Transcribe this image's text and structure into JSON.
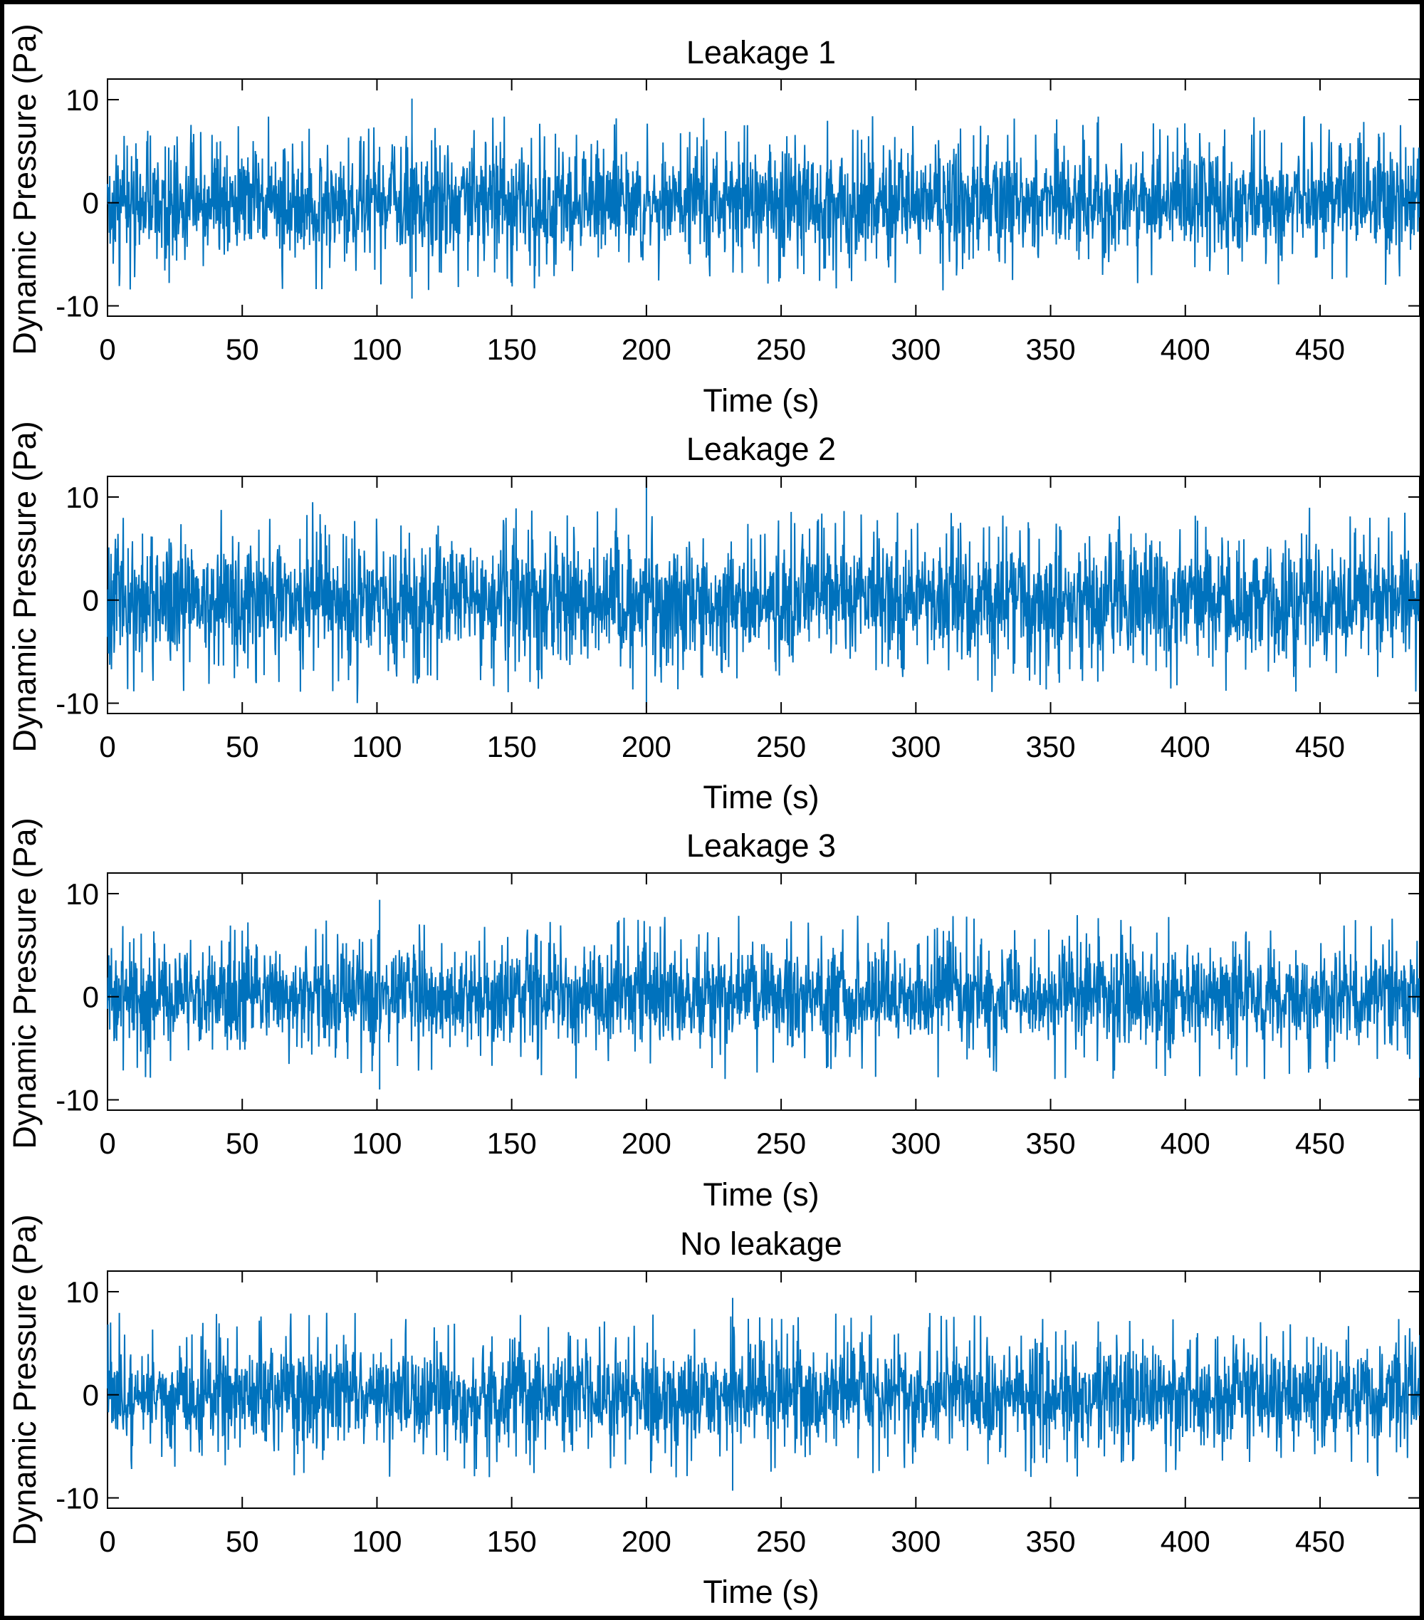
{
  "figure": {
    "series_color": "#0072BD",
    "frame_color": "#000000"
  },
  "chart_data": [
    {
      "type": "line",
      "title": "Leakage 1",
      "xlabel": "Time (s)",
      "ylabel": "Dynamic Pressure (Pa)",
      "xlim": [
        0,
        487
      ],
      "ylim": [
        -11,
        12
      ],
      "xticks": [
        0,
        50,
        100,
        150,
        200,
        250,
        300,
        350,
        400,
        450
      ],
      "yticks": [
        -10,
        0,
        10
      ],
      "xtick_labels": [
        "0",
        "50",
        "100",
        "150",
        "200",
        "250",
        "300",
        "350",
        "400",
        "450"
      ],
      "ytick_labels": [
        "-10",
        "0",
        "10"
      ],
      "series": [
        {
          "name": "Leakage 1",
          "signal": "noise",
          "core_amplitude": 5.5,
          "upper_peak": 10.1,
          "lower_peak": -9.3,
          "peak_time": 113
        }
      ]
    },
    {
      "type": "line",
      "title": "Leakage 2",
      "xlabel": "Time (s)",
      "ylabel": "Dynamic Pressure (Pa)",
      "xlim": [
        0,
        487
      ],
      "ylim": [
        -11,
        12
      ],
      "xticks": [
        0,
        50,
        100,
        150,
        200,
        250,
        300,
        350,
        400,
        450
      ],
      "yticks": [
        -10,
        0,
        10
      ],
      "xtick_labels": [
        "0",
        "50",
        "100",
        "150",
        "200",
        "250",
        "300",
        "350",
        "400",
        "450"
      ],
      "ytick_labels": [
        "-10",
        "0",
        "10"
      ],
      "series": [
        {
          "name": "Leakage 2",
          "signal": "noise",
          "core_amplitude": 6.0,
          "upper_peak": 12.0,
          "lower_peak": -10.4,
          "peak_time": 200
        }
      ]
    },
    {
      "type": "line",
      "title": "Leakage 3",
      "xlabel": "Time (s)",
      "ylabel": "Dynamic Pressure (Pa)",
      "xlim": [
        0,
        487
      ],
      "ylim": [
        -11,
        12
      ],
      "xticks": [
        0,
        50,
        100,
        150,
        200,
        250,
        300,
        350,
        400,
        450
      ],
      "yticks": [
        -10,
        0,
        10
      ],
      "xtick_labels": [
        "0",
        "50",
        "100",
        "150",
        "200",
        "250",
        "300",
        "350",
        "400",
        "450"
      ],
      "ytick_labels": [
        "-10",
        "0",
        "10"
      ],
      "series": [
        {
          "name": "Leakage 3",
          "signal": "noise",
          "core_amplitude": 5.0,
          "upper_peak": 9.4,
          "lower_peak": -9.0,
          "peak_time": 101
        }
      ]
    },
    {
      "type": "line",
      "title": "No leakage",
      "xlabel": "Time (s)",
      "ylabel": "Dynamic Pressure (Pa)",
      "xlim": [
        0,
        487
      ],
      "ylim": [
        -11,
        12
      ],
      "xticks": [
        0,
        50,
        100,
        150,
        200,
        250,
        300,
        350,
        400,
        450
      ],
      "yticks": [
        -10,
        0,
        10
      ],
      "xtick_labels": [
        "0",
        "50",
        "100",
        "150",
        "200",
        "250",
        "300",
        "350",
        "400",
        "450"
      ],
      "ytick_labels": [
        "-10",
        "0",
        "10"
      ],
      "series": [
        {
          "name": "No leakage",
          "signal": "noise",
          "core_amplitude": 5.0,
          "upper_peak": 9.4,
          "lower_peak": -9.3,
          "peak_time": 232
        }
      ]
    }
  ]
}
